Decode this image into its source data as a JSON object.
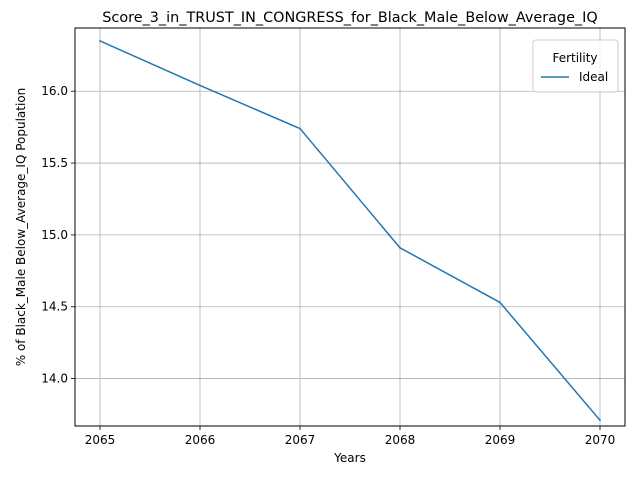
{
  "chart_data": {
    "type": "line",
    "title": "Score_3_in_TRUST_IN_CONGRESS_for_Black_Male_Below_Average_IQ",
    "xlabel": "Years",
    "ylabel": "% of Black_Male Below_Average_IQ Population",
    "x": [
      2065,
      2066,
      2067,
      2068,
      2069,
      2070
    ],
    "x_tick_labels": [
      "2065",
      "2066",
      "2067",
      "2068",
      "2069",
      "2070"
    ],
    "y_ticks": [
      14.0,
      14.5,
      15.0,
      15.5,
      16.0
    ],
    "y_tick_labels": [
      "14.0",
      "14.5",
      "15.0",
      "15.5",
      "16.0"
    ],
    "xlim": [
      2064.75,
      2070.25
    ],
    "ylim": [
      13.67,
      16.44
    ],
    "grid": true,
    "legend": {
      "title": "Fertility",
      "position": "top-right"
    },
    "series": [
      {
        "name": "Ideal",
        "color": "#1f77b4",
        "values": [
          16.35,
          16.04,
          15.74,
          14.91,
          14.53,
          13.71
        ]
      }
    ]
  }
}
